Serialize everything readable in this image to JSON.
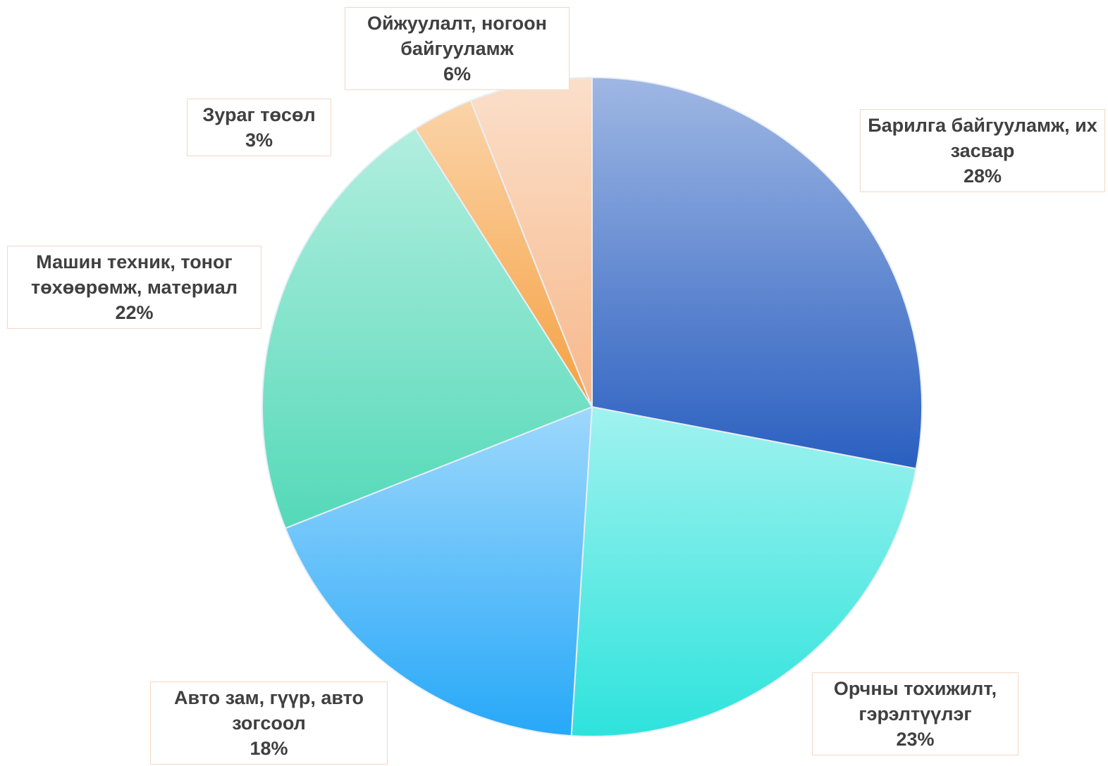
{
  "chart_data": {
    "type": "pie",
    "categories": [
      "Барилга байгууламж, их засвар",
      "Орчны тохижилт, гэрэлтүүлэг",
      "Авто зам, гүүр, авто зогсоол",
      "Машин техник, тоног төхөөрөмж, материал",
      "Зураг төсөл",
      "Ойжуулалт, ногоон байгууламж"
    ],
    "values": [
      28,
      23,
      18,
      22,
      3,
      6
    ],
    "value_labels": [
      "28%",
      "23%",
      "18%",
      "22%",
      "3%",
      "6%"
    ],
    "colors": [
      "#2a5fc0",
      "#2de3dc",
      "#27a8f8",
      "#54d9b8",
      "#f5a040",
      "#f7b88a"
    ]
  }
}
